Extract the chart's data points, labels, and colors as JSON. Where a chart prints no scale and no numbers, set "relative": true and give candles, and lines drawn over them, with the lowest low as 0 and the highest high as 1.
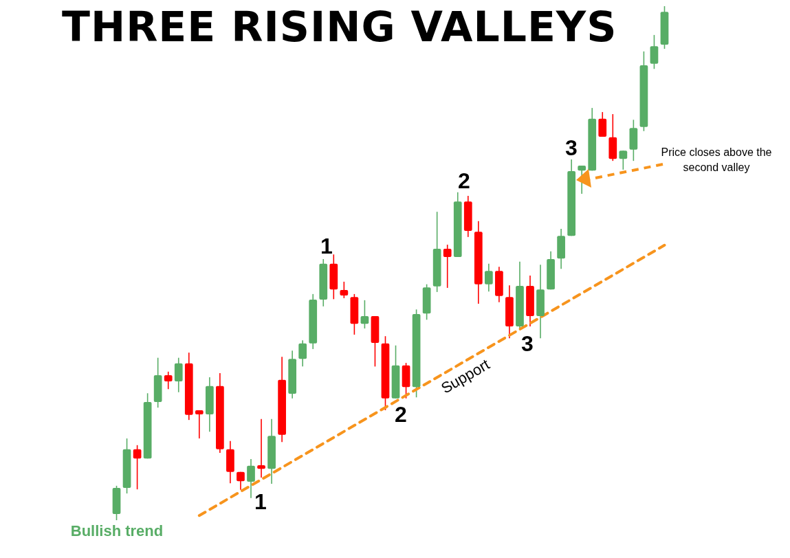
{
  "chart_data": {
    "type": "candlestick",
    "title": "THREE RISING VALLEYS",
    "relative": true,
    "annotations": [
      "1",
      "2",
      "3",
      "1",
      "2",
      "3",
      "Support",
      "Bullish trend",
      "Price closes above the second valley"
    ],
    "categories": [
      null,
      null,
      null,
      null,
      null,
      null,
      null,
      null,
      null,
      null,
      null,
      null,
      null,
      null,
      null,
      null,
      null,
      null,
      null,
      null,
      null,
      null,
      null,
      null,
      null,
      null,
      null,
      null,
      null,
      null,
      null,
      null,
      null,
      null,
      null,
      null,
      null,
      null,
      null,
      null,
      null,
      null,
      null,
      null,
      null,
      null,
      null,
      null,
      null,
      null,
      null,
      null,
      null,
      null
    ],
    "ohlc": [
      [
        0.012,
        0.067,
        0,
        0.063
      ],
      [
        0.063,
        0.159,
        0.052,
        0.138
      ],
      [
        0.138,
        0.146,
        0.06,
        0.12
      ],
      [
        0.12,
        0.247,
        0.12,
        0.23
      ],
      [
        0.23,
        0.316,
        0.219,
        0.282
      ],
      [
        0.282,
        0.289,
        0.255,
        0.27
      ],
      [
        0.27,
        0.316,
        0.249,
        0.305
      ],
      [
        0.305,
        0.326,
        0.195,
        0.205
      ],
      [
        0.214,
        0.214,
        0.159,
        0.206
      ],
      [
        0.206,
        0.278,
        0.172,
        0.261
      ],
      [
        0.261,
        0.286,
        0.131,
        0.138
      ],
      [
        0.138,
        0.154,
        0.072,
        0.094
      ],
      [
        0.094,
        0.094,
        0.059,
        0.076
      ],
      [
        0.075,
        0.119,
        0.043,
        0.106
      ],
      [
        0.107,
        0.197,
        0.083,
        0.1
      ],
      [
        0.1,
        0.197,
        0.071,
        0.164
      ],
      [
        0.273,
        0.318,
        0.152,
        0.166
      ],
      [
        0.246,
        0.33,
        0.237,
        0.314
      ],
      [
        0.314,
        0.35,
        0.299,
        0.344
      ],
      [
        0.344,
        0.44,
        0.333,
        0.429
      ],
      [
        0.429,
        0.508,
        0.416,
        0.499
      ],
      [
        0.499,
        0.517,
        0.43,
        0.449
      ],
      [
        0.448,
        0.464,
        0.432,
        0.437
      ],
      [
        0.434,
        0.44,
        0.361,
        0.382
      ],
      [
        0.382,
        0.428,
        0.373,
        0.397
      ],
      [
        0.397,
        0.397,
        0.299,
        0.345
      ],
      [
        0.344,
        0.358,
        0.214,
        0.237
      ],
      [
        0.237,
        0.34,
        0.237,
        0.301
      ],
      [
        0.301,
        0.306,
        0.237,
        0.259
      ],
      [
        0.259,
        0.41,
        0.239,
        0.401
      ],
      [
        0.402,
        0.459,
        0.39,
        0.453
      ],
      [
        0.455,
        0.6,
        0.444,
        0.528
      ],
      [
        0.528,
        0.536,
        0.452,
        0.512
      ],
      [
        0.512,
        0.638,
        0.512,
        0.62
      ],
      [
        0.62,
        0.631,
        0.551,
        0.563
      ],
      [
        0.561,
        0.582,
        0.421,
        0.459
      ],
      [
        0.459,
        0.499,
        0.445,
        0.485
      ],
      [
        0.485,
        0.493,
        0.424,
        0.436
      ],
      [
        0.434,
        0.457,
        0.354,
        0.377
      ],
      [
        0.377,
        0.503,
        0.37,
        0.456
      ],
      [
        0.456,
        0.476,
        0.377,
        0.397
      ],
      [
        0.397,
        0.497,
        0.354,
        0.449
      ],
      [
        0.449,
        0.523,
        0.449,
        0.508
      ],
      [
        0.509,
        0.567,
        0.489,
        0.553
      ],
      [
        0.553,
        0.702,
        0.553,
        0.679
      ],
      [
        0.68,
        0.69,
        0.635,
        0.69
      ],
      [
        0.68,
        0.802,
        0.68,
        0.781
      ],
      [
        0.781,
        0.794,
        0.746,
        0.746
      ],
      [
        0.745,
        0.79,
        0.699,
        0.703
      ],
      [
        0.703,
        0.719,
        0.682,
        0.719
      ],
      [
        0.721,
        0.779,
        0.699,
        0.763
      ],
      [
        0.765,
        0.912,
        0.757,
        0.885
      ],
      [
        0.888,
        0.944,
        0.878,
        0.922
      ],
      [
        0.925,
        1,
        0.917,
        0.989
      ]
    ],
    "colors": [
      "#58ad66",
      "#58ad66",
      "#ff0000",
      "#58ad66",
      "#58ad66",
      "#ff0000",
      "#58ad66",
      "#ff0000",
      "#ff0000",
      "#58ad66",
      "#ff0000",
      "#ff0000",
      "#ff0000",
      "#58ad66",
      "#ff0000",
      "#58ad66",
      "#ff0000",
      "#58ad66",
      "#58ad66",
      "#58ad66",
      "#58ad66",
      "#ff0000",
      "#ff0000",
      "#ff0000",
      "#58ad66",
      "#ff0000",
      "#ff0000",
      "#58ad66",
      "#ff0000",
      "#58ad66",
      "#58ad66",
      "#58ad66",
      "#ff0000",
      "#58ad66",
      "#ff0000",
      "#ff0000",
      "#58ad66",
      "#ff0000",
      "#ff0000",
      "#58ad66",
      "#ff0000",
      "#58ad66",
      "#58ad66",
      "#58ad66",
      "#58ad66",
      "#58ad66",
      "#58ad66",
      "#ff0000",
      "#ff0000",
      "#58ad66",
      "#58ad66",
      "#58ad66",
      "#58ad66",
      "#58ad66"
    ],
    "series": [
      {
        "type": "line",
        "color": "#f7941d",
        "line_style": "dashed",
        "values": [
          null,
          null,
          null,
          null,
          null,
          null,
          null,
          null,
          0.009,
          null,
          null,
          null,
          null,
          null,
          null,
          null,
          null,
          null,
          null,
          null,
          null,
          null,
          null,
          null,
          null,
          null,
          null,
          null,
          null,
          null,
          null,
          null,
          null,
          null,
          null,
          null,
          null,
          null,
          null,
          null,
          null,
          null,
          null,
          null,
          null,
          null,
          null,
          null,
          null,
          null,
          null,
          null,
          null,
          0.535
        ]
      }
    ]
  }
}
